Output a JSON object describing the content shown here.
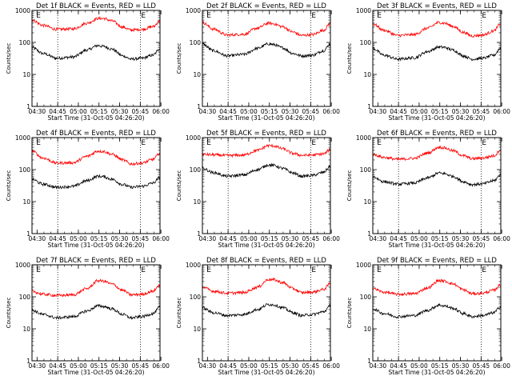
{
  "colors": {
    "events": "#000000",
    "lld": "#ff0000",
    "axes": "#000000",
    "background": "#ffffff"
  },
  "chart_data": [
    {
      "type": "line",
      "title": "Det 1f BLACK = Events, RED = LLD",
      "marker": "E",
      "xlabel": "Start Time (31-Oct-05 04:26:20)",
      "ylabel": "Counts/sec",
      "xtick_labels": [
        "04:30",
        "04:45",
        "05:00",
        "05:15",
        "05:30",
        "05:45",
        "06:00"
      ],
      "ytick_labels": [
        "1",
        "10",
        "100",
        "1000"
      ],
      "yscale": "log",
      "ylim": [
        1,
        1000
      ],
      "xlim_minutes": [
        0,
        93
      ],
      "vlines_minutes": [
        18.7,
        78.7
      ],
      "series": [
        {
          "color": "black",
          "x": [
            0,
            8,
            18,
            30,
            40,
            48,
            52,
            58,
            66,
            72,
            80,
            88,
            93
          ],
          "values": [
            70,
            45,
            32,
            35,
            58,
            80,
            75,
            62,
            38,
            30,
            32,
            40,
            65
          ]
        },
        {
          "color": "red",
          "x": [
            0,
            8,
            18,
            30,
            40,
            48,
            52,
            58,
            66,
            72,
            80,
            88,
            93
          ],
          "values": [
            500,
            340,
            255,
            265,
            400,
            560,
            560,
            470,
            300,
            245,
            255,
            310,
            480
          ]
        }
      ]
    },
    {
      "type": "line",
      "title": "Det 2f BLACK = Events, RED = LLD",
      "marker": "E",
      "xlabel": "Start Time (31-Oct-05 04:26:20)",
      "ylabel": "Counts/sec",
      "xtick_labels": [
        "04:30",
        "04:45",
        "05:00",
        "05:15",
        "05:30",
        "05:45",
        "06:00"
      ],
      "ytick_labels": [
        "1",
        "10",
        "100",
        "1000"
      ],
      "yscale": "log",
      "ylim": [
        1,
        1000
      ],
      "xlim_minutes": [
        0,
        93
      ],
      "vlines_minutes": [
        18.7,
        78.7
      ],
      "series": [
        {
          "color": "black",
          "x": [
            0,
            8,
            18,
            30,
            40,
            48,
            52,
            58,
            66,
            72,
            80,
            88,
            93
          ],
          "values": [
            90,
            55,
            38,
            42,
            65,
            90,
            85,
            68,
            45,
            38,
            40,
            55,
            90
          ]
        },
        {
          "color": "red",
          "x": [
            0,
            8,
            18,
            30,
            40,
            48,
            52,
            58,
            66,
            72,
            80,
            88,
            93
          ],
          "values": [
            420,
            260,
            170,
            180,
            280,
            400,
            380,
            310,
            210,
            165,
            175,
            240,
            400
          ]
        }
      ]
    },
    {
      "type": "line",
      "title": "Det 3f BLACK = Events, RED = LLD",
      "marker": "E",
      "xlabel": "Start Time (31-Oct-05 04:26:20)",
      "ylabel": "Counts/sec",
      "xtick_labels": [
        "04:30",
        "04:45",
        "05:00",
        "05:15",
        "05:30",
        "05:45",
        "06:00"
      ],
      "ytick_labels": [
        "1",
        "10",
        "100",
        "1000"
      ],
      "yscale": "log",
      "ylim": [
        1,
        1000
      ],
      "xlim_minutes": [
        0,
        93
      ],
      "vlines_minutes": [
        18.7,
        78.7
      ],
      "series": [
        {
          "color": "black",
          "x": [
            0,
            8,
            18,
            30,
            40,
            48,
            52,
            58,
            66,
            72,
            80,
            88,
            93
          ],
          "values": [
            65,
            40,
            30,
            33,
            52,
            72,
            70,
            58,
            38,
            30,
            32,
            40,
            68
          ]
        },
        {
          "color": "red",
          "x": [
            0,
            8,
            18,
            30,
            40,
            48,
            52,
            58,
            66,
            72,
            80,
            88,
            93
          ],
          "values": [
            380,
            240,
            165,
            175,
            280,
            420,
            400,
            320,
            205,
            160,
            170,
            230,
            390
          ]
        }
      ]
    },
    {
      "type": "line",
      "title": "Det 4f BLACK = Events, RED = LLD",
      "marker": "E",
      "xlabel": "Start Time (31-Oct-05 04:26:20)",
      "ylabel": "Counts/sec",
      "xtick_labels": [
        "04:30",
        "04:45",
        "05:00",
        "05:15",
        "05:30",
        "05:45",
        "06:00"
      ],
      "ytick_labels": [
        "1",
        "10",
        "100",
        "1000"
      ],
      "yscale": "log",
      "ylim": [
        1,
        1000
      ],
      "xlim_minutes": [
        0,
        93
      ],
      "vlines_minutes": [
        18.7,
        78.7
      ],
      "series": [
        {
          "color": "black",
          "x": [
            0,
            8,
            18,
            30,
            40,
            48,
            52,
            58,
            66,
            72,
            80,
            88,
            93
          ],
          "values": [
            50,
            35,
            28,
            30,
            45,
            62,
            60,
            50,
            34,
            28,
            30,
            38,
            58
          ]
        },
        {
          "color": "red",
          "x": [
            0,
            8,
            18,
            30,
            40,
            48,
            52,
            58,
            66,
            72,
            80,
            88,
            93
          ],
          "values": [
            380,
            230,
            160,
            165,
            260,
            380,
            370,
            300,
            200,
            150,
            160,
            210,
            330
          ]
        }
      ]
    },
    {
      "type": "line",
      "title": "Det 5f BLACK = Events, RED = LLD",
      "marker": "E",
      "xlabel": "Start Time (31-Oct-05 04:26:20)",
      "ylabel": "Counts/sec",
      "xtick_labels": [
        "04:30",
        "04:45",
        "05:00",
        "05:15",
        "05:30",
        "05:45",
        "06:00"
      ],
      "ytick_labels": [
        "1",
        "10",
        "100",
        "1000"
      ],
      "yscale": "log",
      "ylim": [
        1,
        1000
      ],
      "xlim_minutes": [
        0,
        93
      ],
      "vlines_minutes": [
        18.7,
        78.7
      ],
      "series": [
        {
          "color": "black",
          "x": [
            0,
            8,
            18,
            30,
            40,
            48,
            52,
            58,
            66,
            72,
            80,
            88,
            93
          ],
          "values": [
            110,
            80,
            62,
            68,
            100,
            140,
            135,
            110,
            78,
            62,
            66,
            82,
            130
          ]
        },
        {
          "color": "red",
          "x": [
            0,
            8,
            18,
            30,
            40,
            48,
            52,
            58,
            66,
            72,
            80,
            88,
            93
          ],
          "values": [
            300,
            290,
            275,
            285,
            400,
            560,
            550,
            450,
            320,
            280,
            285,
            310,
            420
          ]
        }
      ]
    },
    {
      "type": "line",
      "title": "Det 6f BLACK = Events, RED = LLD",
      "marker": "E",
      "xlabel": "Start Time (31-Oct-05 04:26:20)",
      "ylabel": "Counts/sec",
      "xtick_labels": [
        "04:30",
        "04:45",
        "05:00",
        "05:15",
        "05:30",
        "05:45",
        "06:00"
      ],
      "ytick_labels": [
        "1",
        "10",
        "100",
        "1000"
      ],
      "yscale": "log",
      "ylim": [
        1,
        1000
      ],
      "xlim_minutes": [
        0,
        93
      ],
      "vlines_minutes": [
        18.7,
        78.7
      ],
      "series": [
        {
          "color": "black",
          "x": [
            0,
            8,
            18,
            30,
            40,
            48,
            52,
            58,
            66,
            72,
            80,
            88,
            93
          ],
          "values": [
            60,
            42,
            35,
            38,
            55,
            78,
            75,
            62,
            42,
            34,
            36,
            45,
            70
          ]
        },
        {
          "color": "red",
          "x": [
            0,
            8,
            18,
            30,
            40,
            48,
            52,
            58,
            66,
            72,
            80,
            88,
            93
          ],
          "values": [
            300,
            240,
            210,
            225,
            330,
            500,
            480,
            390,
            270,
            220,
            230,
            270,
            420
          ]
        }
      ]
    },
    {
      "type": "line",
      "title": "Det 7f BLACK = Events, RED = LLD",
      "marker": "E",
      "xlabel": "Start Time (31-Oct-05 04:26:20)",
      "ylabel": "Counts/sec",
      "xtick_labels": [
        "04:30",
        "04:45",
        "05:00",
        "05:15",
        "05:30",
        "05:45",
        "06:00"
      ],
      "ytick_labels": [
        "1",
        "10",
        "100",
        "1000"
      ],
      "yscale": "log",
      "ylim": [
        1,
        1000
      ],
      "xlim_minutes": [
        0,
        93
      ],
      "vlines_minutes": [
        18.7,
        78.7
      ],
      "series": [
        {
          "color": "black",
          "x": [
            0,
            8,
            18,
            30,
            40,
            48,
            52,
            58,
            66,
            72,
            80,
            88,
            93
          ],
          "values": [
            38,
            28,
            22,
            24,
            36,
            52,
            50,
            42,
            28,
            22,
            24,
            30,
            48
          ]
        },
        {
          "color": "red",
          "x": [
            0,
            8,
            18,
            30,
            40,
            48,
            52,
            58,
            66,
            72,
            80,
            88,
            93
          ],
          "values": [
            150,
            120,
            110,
            115,
            180,
            320,
            310,
            250,
            160,
            115,
            120,
            150,
            240
          ]
        }
      ]
    },
    {
      "type": "line",
      "title": "Det 8f BLACK = Events, RED = LLD",
      "marker": "E",
      "xlabel": "Start Time (31-Oct-05 04:26:20)",
      "ylabel": "Counts/sec",
      "xtick_labels": [
        "04:30",
        "04:45",
        "05:00",
        "05:15",
        "05:30",
        "05:45",
        "06:00"
      ],
      "ytick_labels": [
        "1",
        "10",
        "100",
        "1000"
      ],
      "yscale": "log",
      "ylim": [
        1,
        1000
      ],
      "xlim_minutes": [
        0,
        93
      ],
      "vlines_minutes": [
        18.7,
        78.7
      ],
      "series": [
        {
          "color": "black",
          "x": [
            0,
            8,
            18,
            30,
            40,
            48,
            52,
            58,
            66,
            72,
            80,
            88,
            93
          ],
          "values": [
            45,
            32,
            26,
            28,
            40,
            58,
            56,
            46,
            32,
            26,
            28,
            34,
            52
          ]
        },
        {
          "color": "red",
          "x": [
            0,
            8,
            18,
            30,
            40,
            48,
            52,
            58,
            66,
            72,
            80,
            88,
            93
          ],
          "values": [
            200,
            150,
            130,
            135,
            200,
            350,
            340,
            280,
            180,
            135,
            140,
            170,
            260
          ]
        }
      ]
    },
    {
      "type": "line",
      "title": "Det 9f BLACK = Events, RED = LLD",
      "marker": "E",
      "xlabel": "Start Time (31-Oct-05 04:26:20)",
      "ylabel": "Counts/sec",
      "xtick_labels": [
        "04:30",
        "04:45",
        "05:00",
        "05:15",
        "05:30",
        "05:45",
        "06:00"
      ],
      "ytick_labels": [
        "1",
        "10",
        "100",
        "1000"
      ],
      "yscale": "log",
      "ylim": [
        1,
        1000
      ],
      "xlim_minutes": [
        0,
        93
      ],
      "vlines_minutes": [
        18.7,
        78.7
      ],
      "series": [
        {
          "color": "black",
          "x": [
            0,
            8,
            18,
            30,
            40,
            48,
            52,
            58,
            66,
            72,
            80,
            88,
            93
          ],
          "values": [
            42,
            30,
            24,
            26,
            38,
            55,
            52,
            44,
            30,
            24,
            26,
            32,
            50
          ]
        },
        {
          "color": "red",
          "x": [
            0,
            8,
            18,
            30,
            40,
            48,
            52,
            58,
            66,
            72,
            80,
            88,
            93
          ],
          "values": [
            180,
            140,
            120,
            125,
            190,
            320,
            310,
            255,
            165,
            125,
            130,
            160,
            240
          ]
        }
      ]
    }
  ]
}
